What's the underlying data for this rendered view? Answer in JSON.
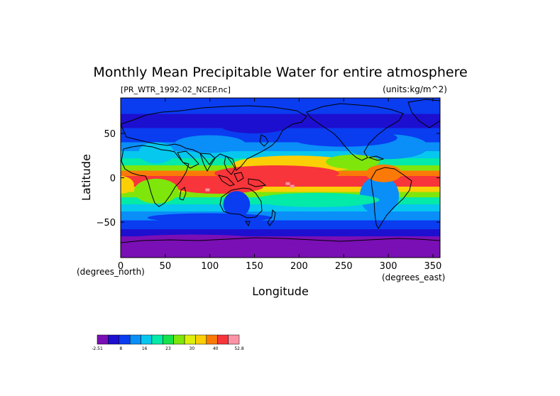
{
  "chart_data": {
    "type": "heatmap",
    "title": "Monthly Mean Precipitable Water for entire atmosphere",
    "subtitle_left": "[PR_WTR_1992-02_NCEP.nc]",
    "subtitle_right": "(units:kg/m^2)",
    "xlabel": "Longitude",
    "ylabel": "Latitude",
    "x_units": "(degrees_east)",
    "y_units": "(degrees_north)",
    "xlim": [
      0,
      358
    ],
    "ylim": [
      -90,
      90
    ],
    "x_ticks": [
      0,
      50,
      100,
      150,
      200,
      250,
      300,
      350
    ],
    "y_ticks": [
      50,
      0,
      -50
    ],
    "y_tick_labels": [
      "50",
      "0",
      "−50"
    ],
    "colorbar": {
      "colors": [
        "#7a0fb5",
        "#1d0fcf",
        "#0a3cf0",
        "#0a8ef8",
        "#06c7ee",
        "#04eaa8",
        "#16e24a",
        "#7ee60b",
        "#dcf00a",
        "#fbcf06",
        "#fb7a07",
        "#f7353a",
        "#fb93a6"
      ],
      "tick_labels": [
        "-2.51",
        "8",
        "16",
        "23",
        "30",
        "40",
        "52.8"
      ]
    }
  }
}
